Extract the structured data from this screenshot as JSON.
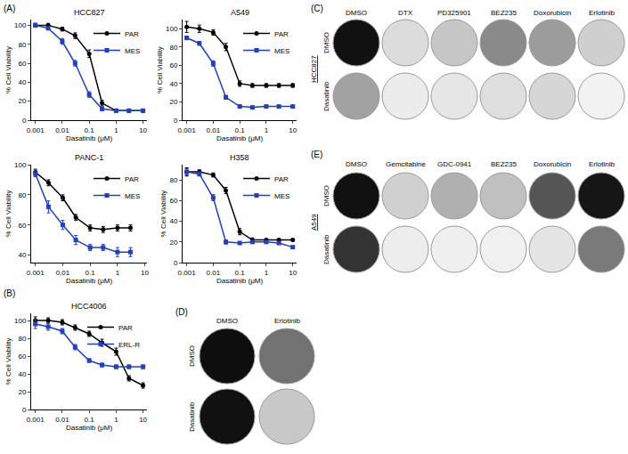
{
  "chart_data": [
    {
      "type": "line",
      "title": "HCC827",
      "x_label": "Dasatinib (μM)",
      "y_label": "% Cell Viability",
      "log": "x",
      "legend": "top right",
      "grid": false,
      "x": [
        0.001,
        0.003,
        0.01,
        0.03,
        0.1,
        0.3,
        1,
        3,
        10
      ],
      "xlim": [
        0.0007,
        14
      ],
      "xticks": [
        0.001,
        0.01,
        0.1,
        1,
        10
      ],
      "ylim": [
        0,
        106
      ],
      "yticks": [
        0,
        20,
        40,
        60,
        80,
        100
      ],
      "series": [
        {
          "name": "PAR",
          "color": "#000000",
          "marker": "circle",
          "values": [
            100,
            100,
            96,
            89,
            70,
            18,
            10,
            10,
            10
          ],
          "errors": [
            2,
            2,
            2,
            3,
            4,
            3,
            1,
            1,
            1
          ]
        },
        {
          "name": "MES",
          "color": "#1f3fc8",
          "marker": "square",
          "values": [
            100,
            97,
            83,
            60,
            27,
            12,
            10,
            10,
            10
          ],
          "errors": [
            2,
            2,
            3,
            3,
            3,
            2,
            1,
            1,
            1
          ]
        }
      ]
    },
    {
      "type": "line",
      "title": "A549",
      "x_label": "Dasatinib (μM)",
      "y_label": "% Cell Viability",
      "log": "x",
      "legend": "top right",
      "grid": false,
      "x": [
        0.001,
        0.003,
        0.01,
        0.03,
        0.1,
        0.3,
        1,
        3,
        10
      ],
      "xlim": [
        0.0007,
        14
      ],
      "xticks": [
        0.001,
        0.01,
        0.1,
        1,
        10
      ],
      "ylim": [
        0,
        110
      ],
      "yticks": [
        0,
        20,
        40,
        60,
        80,
        100
      ],
      "series": [
        {
          "name": "PAR",
          "color": "#000000",
          "marker": "circle",
          "values": [
            102,
            100,
            96,
            80,
            40,
            38,
            38,
            38,
            38
          ],
          "errors": [
            6,
            4,
            3,
            4,
            3,
            2,
            2,
            2,
            2
          ]
        },
        {
          "name": "MES",
          "color": "#1f3fc8",
          "marker": "square",
          "values": [
            90,
            84,
            62,
            25,
            15,
            14,
            15,
            15,
            15
          ],
          "errors": [
            2,
            2,
            3,
            2,
            1,
            1,
            1,
            1,
            1
          ]
        }
      ]
    },
    {
      "type": "line",
      "title": "PANC-1",
      "x_label": "Dasatinib (μM)",
      "y_label": "% Cell Viability",
      "log": "x",
      "legend": "top right",
      "grid": false,
      "x": [
        0.001,
        0.003,
        0.01,
        0.03,
        0.1,
        0.3,
        1,
        3
      ],
      "xlim": [
        0.0007,
        12
      ],
      "xticks": [
        0.001,
        0.01,
        0.1,
        1,
        10
      ],
      "ylim": [
        35,
        100
      ],
      "yticks": [
        40,
        60,
        80,
        100
      ],
      "series": [
        {
          "name": "PAR",
          "color": "#000000",
          "marker": "circle",
          "values": [
            95,
            88,
            78,
            65,
            58,
            57,
            58,
            58
          ],
          "errors": [
            2,
            2,
            2,
            2,
            2,
            2,
            2,
            2
          ]
        },
        {
          "name": "MES",
          "color": "#1f3fc8",
          "marker": "square",
          "values": [
            94,
            72,
            60,
            50,
            45,
            45,
            42,
            42
          ],
          "errors": [
            2,
            4,
            3,
            3,
            2,
            2,
            3,
            3
          ]
        }
      ]
    },
    {
      "type": "line",
      "title": "H358",
      "x_label": "Dasatinib (μM)",
      "y_label": "% Cell Viability",
      "log": "x",
      "legend": "top right",
      "grid": false,
      "x": [
        0.001,
        0.003,
        0.01,
        0.03,
        0.1,
        0.3,
        1,
        3,
        10
      ],
      "xlim": [
        0.0007,
        14
      ],
      "xticks": [
        0.001,
        0.01,
        0.1,
        1,
        10
      ],
      "ylim": [
        0,
        95
      ],
      "yticks": [
        0,
        20,
        40,
        60,
        80
      ],
      "series": [
        {
          "name": "PAR",
          "color": "#000000",
          "marker": "circle",
          "values": [
            88,
            88,
            85,
            70,
            30,
            22,
            22,
            22,
            22
          ],
          "errors": [
            4,
            2,
            2,
            3,
            3,
            2,
            1,
            1,
            1
          ]
        },
        {
          "name": "MES",
          "color": "#1f3fc8",
          "marker": "square",
          "values": [
            88,
            86,
            63,
            20,
            19,
            20,
            20,
            19,
            15
          ],
          "errors": [
            3,
            2,
            3,
            2,
            1,
            1,
            1,
            1,
            1
          ]
        }
      ]
    },
    {
      "type": "line",
      "title": "HCC4006",
      "x_label": "Dasatinib (μM)",
      "y_label": "% Cell Viability",
      "log": "x",
      "legend": "top right",
      "grid": false,
      "x": [
        0.001,
        0.003,
        0.01,
        0.03,
        0.1,
        0.3,
        1,
        3,
        10
      ],
      "xlim": [
        0.0007,
        14
      ],
      "xticks": [
        0.001,
        0.01,
        0.1,
        1,
        10
      ],
      "ylim": [
        0,
        108
      ],
      "yticks": [
        0,
        20,
        40,
        60,
        80,
        100
      ],
      "series": [
        {
          "name": "PAR",
          "color": "#000000",
          "marker": "circle",
          "values": [
            100,
            100,
            98,
            92,
            85,
            75,
            65,
            35,
            27
          ],
          "errors": [
            4,
            3,
            3,
            3,
            3,
            4,
            4,
            3,
            3
          ]
        },
        {
          "name": "ERL-R",
          "color": "#1f3fc8",
          "marker": "square",
          "values": [
            96,
            93,
            88,
            70,
            55,
            50,
            48,
            48,
            48
          ],
          "errors": [
            5,
            4,
            3,
            3,
            2,
            2,
            2,
            2,
            2
          ]
        }
      ]
    }
  ],
  "panel_labels": [
    "(A)",
    "(B)",
    "(C)",
    "(D)",
    "(E)"
  ],
  "well_plates": [
    {
      "cell_line": "HCC827",
      "columns": [
        "DMSO",
        "DTX",
        "PD325901",
        "BEZ235",
        "Doxorubicin",
        "Erlotinib"
      ],
      "rows": [
        "DMSO",
        "Dasatinib"
      ],
      "colors": [
        [
          "#111111",
          "#dcdcdc",
          "#c6c6c6",
          "#8a8a8a",
          "#9c9c9c",
          "#cfcfcf"
        ],
        [
          "#a2a2a2",
          "#ececec",
          "#e6e6e6",
          "#dedede",
          "#d6d6d6",
          "#f2f2f2"
        ]
      ]
    },
    {
      "columns": [
        "DMSO",
        "Erlotinib"
      ],
      "rows": [
        "DMSO",
        "Dasatinib"
      ],
      "colors": [
        [
          "#0e0e0e",
          "#727272"
        ],
        [
          "#111111",
          "#c8c8c8"
        ]
      ]
    },
    {
      "cell_line": "A549",
      "columns": [
        "DMSO",
        "Gemcitabine",
        "GDC-0941",
        "BEZ235",
        "Doxorubicin",
        "Erlotinib"
      ],
      "rows": [
        "DMSO",
        "Dasatinib"
      ],
      "colors": [
        [
          "#111111",
          "#d0d0d0",
          "#b0b0b0",
          "#c0c0c0",
          "#555555",
          "#161616"
        ],
        [
          "#333333",
          "#ededed",
          "#efefef",
          "#f0f0f0",
          "#e4e4e4",
          "#7a7a7a"
        ]
      ]
    }
  ]
}
